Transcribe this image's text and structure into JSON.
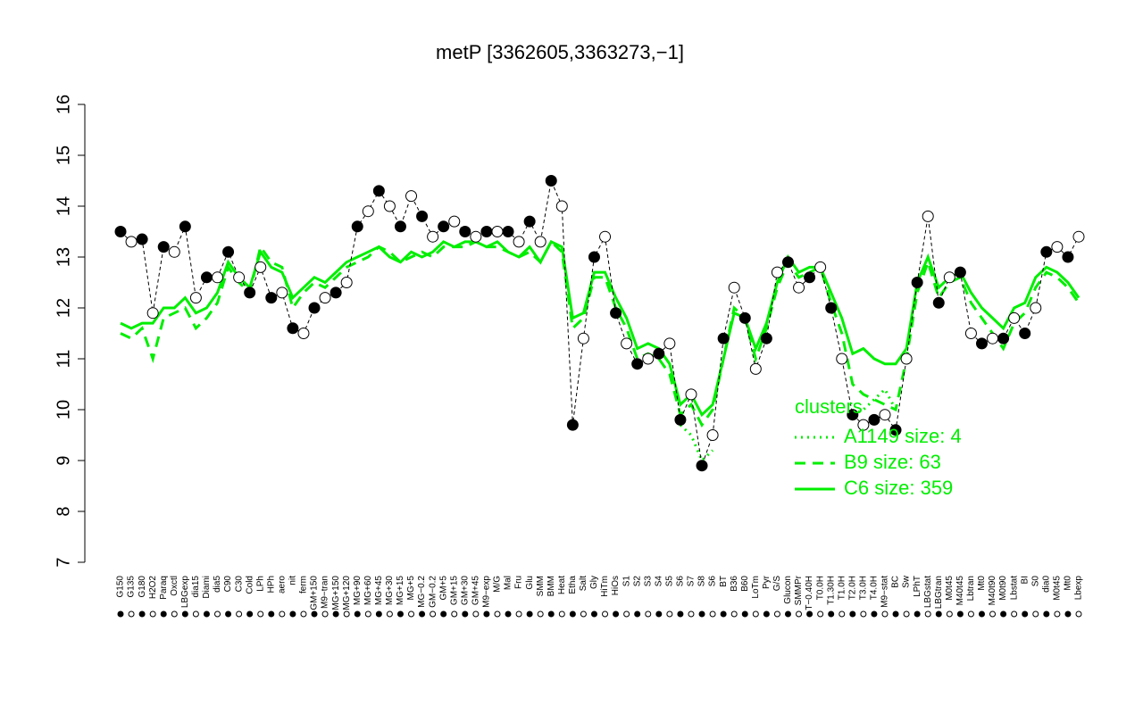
{
  "chart_data": {
    "type": "line",
    "title": "metP [3362605,3363273,−1]",
    "categories": [
      "G150",
      "G135",
      "G180",
      "H2O2",
      "Paraq",
      "Oxctl",
      "LBGexp",
      "dia15",
      "Diami",
      "dia5",
      "C90",
      "C30",
      "Cold",
      "LPh",
      "HPh",
      "aero",
      "nit",
      "ferm",
      "GM+150",
      "M9−tran",
      "MG+150",
      "MG+120",
      "MG+90",
      "MG+60",
      "MG+45",
      "MG+30",
      "MG+15",
      "MG+5",
      "MG−0.2",
      "GM−0.2",
      "GM+5",
      "GM+15",
      "GM+30",
      "GM+45",
      "M9−exp",
      "M/G",
      "Mal",
      "Fru",
      "Glu",
      "SMM",
      "BMM",
      "Heat",
      "Etha",
      "Salt",
      "Gly",
      "HiTm",
      "HiOs",
      "S1",
      "S2",
      "S3",
      "S4",
      "S5",
      "S6",
      "S7",
      "S8",
      "S6",
      "BT",
      "B36",
      "B60",
      "LoTm",
      "Pyr",
      "G/S",
      "Glucon",
      "SMMPr",
      "T−0.40H",
      "T0.0H",
      "T1.30H",
      "T1.0H",
      "T2.0H",
      "T3.0H",
      "T4.0H",
      "M9−stat",
      "BC",
      "Sw",
      "LPhT",
      "LBGstat",
      "LBGtran",
      "M0t45",
      "M40t45",
      "Lbtran",
      "Mt0",
      "M40t90",
      "M0t90",
      "Lbstat",
      "BI",
      "S0",
      "dia0",
      "M0t45",
      "Mt0",
      "Lbexp"
    ],
    "values": [
      13.5,
      13.3,
      13.35,
      11.9,
      13.2,
      13.1,
      13.6,
      12.2,
      12.6,
      12.6,
      13.1,
      12.6,
      12.3,
      12.8,
      12.2,
      12.3,
      11.6,
      11.5,
      12.0,
      12.2,
      12.3,
      12.5,
      13.6,
      13.9,
      14.3,
      14.0,
      13.6,
      14.2,
      13.8,
      13.4,
      13.6,
      13.7,
      13.5,
      13.4,
      13.5,
      13.5,
      13.5,
      13.3,
      13.7,
      13.3,
      14.5,
      14.0,
      9.7,
      11.4,
      13.0,
      13.4,
      11.9,
      11.3,
      10.9,
      11.0,
      11.1,
      11.3,
      9.8,
      10.3,
      8.9,
      9.5,
      11.4,
      12.4,
      11.8,
      10.8,
      11.4,
      12.7,
      12.9,
      12.4,
      12.6,
      12.8,
      12.0,
      11.0,
      9.9,
      9.7,
      9.8,
      9.9,
      9.6,
      11.0,
      12.5,
      13.8,
      12.1,
      12.6,
      12.7,
      11.5,
      11.3,
      11.4,
      11.4,
      11.8,
      11.5,
      12.0,
      13.1,
      13.2,
      13.0,
      13.4
    ],
    "color": "#000000",
    "series": [
      {
        "name": "A1149 size: 4",
        "color": "#00ee00",
        "dash": "dotted",
        "values": [
          null,
          null,
          null,
          null,
          null,
          null,
          null,
          null,
          null,
          null,
          null,
          null,
          null,
          null,
          null,
          null,
          null,
          null,
          null,
          null,
          null,
          null,
          null,
          null,
          null,
          null,
          null,
          null,
          null,
          null,
          null,
          null,
          null,
          null,
          null,
          null,
          null,
          null,
          null,
          null,
          null,
          null,
          null,
          null,
          null,
          null,
          null,
          null,
          null,
          null,
          null,
          null,
          9.7,
          9.5,
          9.0,
          9.2,
          null,
          null,
          null,
          null,
          null,
          null,
          null,
          null,
          null,
          null,
          null,
          null,
          9.9,
          10.0,
          10.2,
          10.4,
          10.0,
          null,
          null,
          null,
          null,
          null,
          null,
          null,
          null,
          null,
          null,
          null,
          null,
          null,
          null,
          null,
          null,
          null
        ]
      },
      {
        "name": "B9 size: 63",
        "color": "#00ee00",
        "dash": "dashed",
        "values": [
          11.5,
          11.4,
          11.6,
          11.0,
          11.8,
          11.9,
          12.0,
          11.6,
          11.8,
          12.1,
          12.8,
          12.5,
          12.3,
          13.2,
          12.9,
          12.8,
          12.0,
          12.3,
          12.5,
          12.4,
          12.6,
          12.8,
          12.9,
          13.0,
          13.2,
          13.1,
          12.9,
          13.0,
          13.1,
          13.0,
          13.2,
          13.2,
          13.2,
          13.3,
          13.2,
          13.2,
          13.1,
          13.0,
          13.1,
          12.9,
          13.3,
          13.1,
          11.6,
          11.8,
          12.6,
          12.6,
          12.0,
          11.6,
          11.0,
          11.1,
          11.0,
          10.7,
          9.9,
          10.1,
          9.7,
          10.0,
          11.0,
          12.0,
          11.8,
          11.0,
          11.6,
          12.4,
          12.9,
          12.6,
          12.7,
          12.8,
          12.1,
          11.5,
          10.5,
          10.3,
          10.2,
          10.1,
          10.0,
          11.0,
          12.3,
          12.9,
          12.2,
          12.5,
          12.6,
          12.1,
          11.8,
          11.5,
          11.2,
          11.7,
          11.9,
          12.4,
          12.7,
          12.6,
          12.4,
          12.1
        ]
      },
      {
        "name": "C6 size: 359",
        "color": "#00ee00",
        "dash": "solid",
        "values": [
          11.7,
          11.6,
          11.7,
          11.7,
          12.0,
          12.0,
          12.2,
          11.9,
          12.0,
          12.3,
          12.9,
          12.6,
          12.4,
          13.1,
          12.8,
          12.7,
          12.2,
          12.4,
          12.6,
          12.5,
          12.7,
          12.9,
          13.0,
          13.1,
          13.2,
          13.0,
          12.9,
          13.1,
          13.0,
          13.1,
          13.3,
          13.2,
          13.3,
          13.3,
          13.2,
          13.3,
          13.1,
          13.0,
          13.2,
          12.9,
          13.3,
          13.2,
          11.8,
          11.9,
          12.7,
          12.7,
          12.2,
          11.8,
          11.2,
          11.3,
          11.2,
          10.9,
          10.1,
          10.3,
          9.9,
          10.1,
          11.0,
          11.9,
          11.8,
          11.2,
          11.7,
          12.5,
          13.0,
          12.7,
          12.8,
          12.8,
          12.3,
          11.8,
          11.1,
          11.2,
          11.0,
          10.9,
          10.9,
          11.2,
          12.5,
          13.0,
          12.4,
          12.6,
          12.7,
          12.3,
          12.0,
          11.8,
          11.6,
          12.0,
          12.1,
          12.6,
          12.8,
          12.7,
          12.5,
          12.2
        ]
      }
    ],
    "legend_title": "clusters",
    "legend": "right",
    "ylim": [
      7,
      16
    ],
    "yticks": [
      7,
      8,
      9,
      10,
      11,
      12,
      13,
      14,
      15,
      16
    ]
  }
}
